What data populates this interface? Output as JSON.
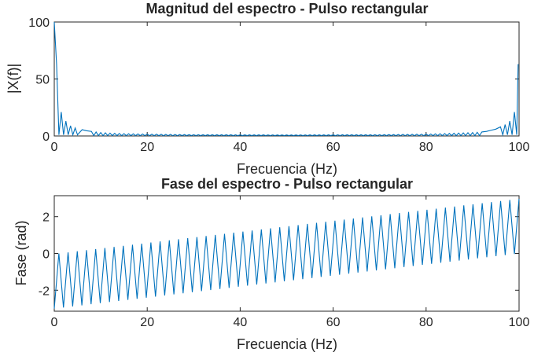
{
  "chart_data": [
    {
      "type": "line",
      "title": "Magnitud del espectro - Pulso rectangular",
      "xlabel": "Frecuencia (Hz)",
      "ylabel": "|X(f)|",
      "xlim": [
        0,
        100
      ],
      "ylim": [
        0,
        100
      ],
      "xticks": [
        "0",
        "20",
        "40",
        "60",
        "80",
        "100"
      ],
      "yticks": [
        "0",
        "50",
        "100"
      ],
      "grid": false,
      "series": [
        {
          "color": "#0072BD",
          "x": [
            0,
            0.5,
            1,
            1.5,
            2,
            2.5,
            3,
            3.5,
            4,
            4.5,
            5,
            6,
            7,
            8,
            10,
            12,
            15,
            20,
            30,
            40,
            50,
            60,
            70,
            80,
            85,
            88,
            90,
            92,
            93,
            94,
            95,
            96,
            96.5,
            97,
            97.5,
            98,
            98.5,
            99,
            99.5,
            99.8
          ],
          "y": [
            100,
            63,
            1,
            21,
            1,
            13,
            1,
            9,
            1,
            7,
            1,
            5.5,
            4.5,
            4,
            3,
            2.5,
            2,
            1.6,
            1.1,
            1,
            0.9,
            1,
            1.1,
            1.6,
            2.2,
            2.7,
            3,
            3.5,
            4,
            5,
            6,
            8,
            1,
            10,
            1,
            13,
            1,
            21,
            1,
            63
          ]
        }
      ]
    },
    {
      "type": "line",
      "title": "Fase del espectro - Pulso rectangular",
      "xlabel": "Frecuencia (Hz)",
      "ylabel": "Fase (rad)",
      "xlim": [
        0,
        100
      ],
      "ylim": [
        -3.1416,
        3.1416
      ],
      "xticks": [
        "0",
        "20",
        "40",
        "60",
        "80",
        "100"
      ],
      "yticks": [
        "-2",
        "0",
        "2"
      ],
      "grid": false,
      "sawtooth": {
        "period_hz": 1.98,
        "low_start": -3.0,
        "low_end": 0.0,
        "high_start": 0.0,
        "high_end": 3.0
      },
      "series": [
        {
          "color": "#0072BD"
        }
      ]
    }
  ]
}
